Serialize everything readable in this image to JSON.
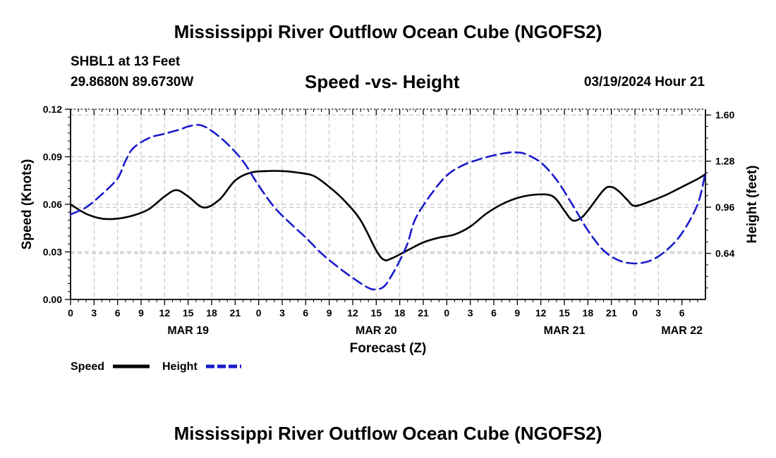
{
  "header": {
    "main_title": "Mississippi River Outflow Ocean Cube (NGOFS2)",
    "station": "SHBL1 at 13 Feet",
    "coords": "29.8680N  89.6730W",
    "subtitle": "Speed -vs- Height",
    "datetime": "03/19/2024 Hour 21"
  },
  "footer": {
    "title": "Mississippi River Outflow Ocean Cube (NGOFS2)"
  },
  "chart_data": {
    "type": "line",
    "title": "Speed -vs- Height",
    "xlabel": "Forecast (Z)",
    "ylabel_left": "Speed (Knots)",
    "ylabel_right": "Height (feet)",
    "x_range_hours": [
      0,
      81
    ],
    "x_tick_labels": [
      "0",
      "3",
      "6",
      "9",
      "12",
      "15",
      "18",
      "21",
      "0",
      "3",
      "6",
      "9",
      "12",
      "15",
      "18",
      "21",
      "0",
      "3",
      "6",
      "9",
      "12",
      "15",
      "18",
      "21",
      "0",
      "3",
      "6"
    ],
    "date_labels": [
      {
        "hour": 15,
        "label": "MAR 19"
      },
      {
        "hour": 39,
        "label": "MAR 20"
      },
      {
        "hour": 63,
        "label": "MAR 21"
      },
      {
        "hour": 78,
        "label": "MAR 22"
      }
    ],
    "left_axis": {
      "ylim": [
        0,
        0.12
      ],
      "ticks": [
        0,
        0.03,
        0.06,
        0.09,
        0.12
      ],
      "tick_labels": [
        "0.00",
        "0.03",
        "0.06",
        "0.09",
        "0.12"
      ]
    },
    "right_axis": {
      "ylim": [
        0.32,
        1.64
      ],
      "ticks": [
        0.64,
        0.96,
        1.28,
        1.6
      ],
      "tick_labels": [
        "0.64",
        "0.96",
        "1.28",
        "1.60"
      ]
    },
    "grid": true,
    "legend": {
      "placement": "bottom-left",
      "entries": [
        {
          "name": "Speed",
          "color": "#000000",
          "style": "solid"
        },
        {
          "name": "Height",
          "color": "#1a1acc",
          "style": "dashed"
        }
      ]
    },
    "series": [
      {
        "name": "Speed",
        "axis": "left",
        "color": "#000000",
        "style": "solid",
        "x": [
          0,
          2,
          4,
          6,
          8,
          10,
          12,
          13.5,
          15,
          17,
          19,
          21,
          23,
          25,
          27,
          29,
          31,
          33,
          35,
          37,
          39,
          40,
          41,
          43,
          45,
          47,
          49,
          51,
          53,
          55,
          57,
          59,
          61,
          62,
          63,
          64,
          65,
          66,
          68,
          69,
          70,
          71,
          72,
          74,
          76,
          78,
          80,
          81
        ],
        "y": [
          0.06,
          0.054,
          0.051,
          0.051,
          0.053,
          0.057,
          0.065,
          0.069,
          0.065,
          0.058,
          0.063,
          0.075,
          0.08,
          0.081,
          0.081,
          0.08,
          0.078,
          0.071,
          0.062,
          0.05,
          0.031,
          0.025,
          0.026,
          0.031,
          0.036,
          0.039,
          0.041,
          0.046,
          0.054,
          0.06,
          0.064,
          0.066,
          0.066,
          0.063,
          0.056,
          0.05,
          0.051,
          0.056,
          0.069,
          0.071,
          0.068,
          0.063,
          0.059,
          0.062,
          0.066,
          0.071,
          0.076,
          0.079
        ]
      },
      {
        "name": "Height",
        "axis": "right",
        "color": "#1a1acc",
        "style": "dashed",
        "x": [
          0,
          2,
          4,
          6,
          7,
          8,
          10,
          12,
          14,
          15,
          16.5,
          18,
          20,
          22,
          24,
          26,
          28,
          30,
          32,
          34,
          36,
          38,
          39,
          40,
          41,
          42,
          43,
          44,
          46,
          48,
          50,
          52,
          54,
          56,
          57,
          58,
          60,
          62,
          64,
          66,
          68,
          70,
          72,
          74,
          76,
          78,
          80,
          81
        ],
        "y": [
          0.91,
          0.96,
          1.05,
          1.16,
          1.28,
          1.37,
          1.44,
          1.47,
          1.5,
          1.52,
          1.53,
          1.49,
          1.4,
          1.28,
          1.11,
          0.96,
          0.85,
          0.75,
          0.64,
          0.55,
          0.47,
          0.4,
          0.39,
          0.41,
          0.49,
          0.59,
          0.71,
          0.88,
          1.05,
          1.18,
          1.25,
          1.29,
          1.32,
          1.34,
          1.34,
          1.33,
          1.27,
          1.15,
          0.98,
          0.8,
          0.66,
          0.59,
          0.57,
          0.59,
          0.66,
          0.78,
          0.98,
          1.2
        ]
      }
    ]
  }
}
